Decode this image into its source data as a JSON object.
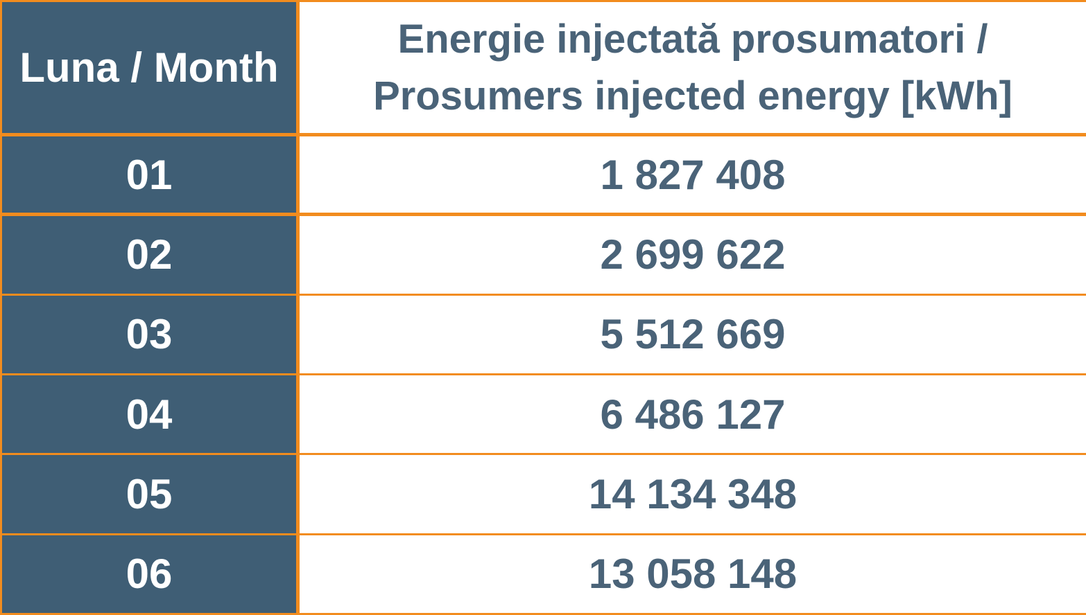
{
  "table": {
    "header": {
      "month": "Luna / Month",
      "energy_line1": "Energie injectată prosumatori /",
      "energy_line2": "Prosumers injected energy [kWh]"
    },
    "rows": [
      {
        "month": "01",
        "energy": "1 827 408"
      },
      {
        "month": "02",
        "energy": "2 699 622"
      },
      {
        "month": "03",
        "energy": "5 512 669"
      },
      {
        "month": "04",
        "energy": "6 486 127"
      },
      {
        "month": "05",
        "energy": "14 134 348"
      },
      {
        "month": "06",
        "energy": "13 058 148"
      }
    ]
  },
  "colors": {
    "header_bg": "#3f5e75",
    "border": "#f28c1e",
    "value_text": "#4a6378"
  }
}
